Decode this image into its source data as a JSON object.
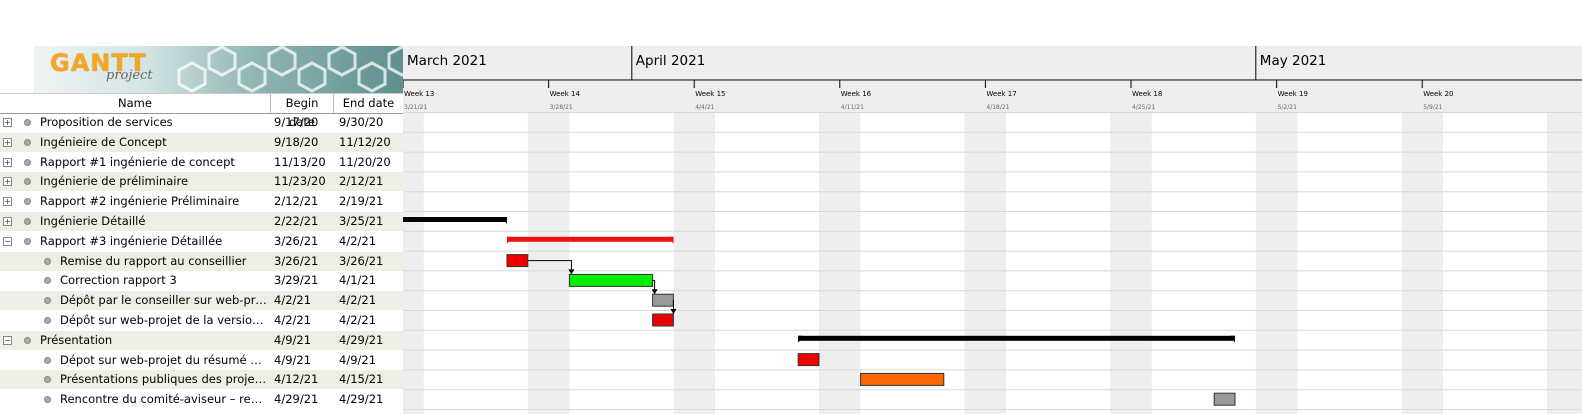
{
  "logo": {
    "title": "GANTT",
    "subtitle": "project"
  },
  "table": {
    "columns": {
      "name": "Name",
      "begin": "Begin date",
      "end": "End date"
    },
    "rows": [
      {
        "name": "Proposition de services",
        "begin": "9/17/20",
        "end": "9/30/20",
        "level": 0,
        "expander": "+"
      },
      {
        "name": "Ingénieire de Concept",
        "begin": "9/18/20",
        "end": "11/12/20",
        "level": 0,
        "expander": "+"
      },
      {
        "name": "Rapport #1  ingénierie de concept",
        "begin": "11/13/20",
        "end": "11/20/20",
        "level": 0,
        "expander": "+"
      },
      {
        "name": "Ingénierie de préliminaire",
        "begin": "11/23/20",
        "end": "2/12/21",
        "level": 0,
        "expander": "+"
      },
      {
        "name": "Rapport #2  ingénierie Préliminaire",
        "begin": "2/12/21",
        "end": "2/19/21",
        "level": 0,
        "expander": "+"
      },
      {
        "name": "Ingénierie Détaillé",
        "begin": "2/22/21",
        "end": "3/25/21",
        "level": 0,
        "expander": "+"
      },
      {
        "name": "Rapport #3  ingénierie Détaillée",
        "begin": "3/26/21",
        "end": "4/2/21",
        "level": 0,
        "expander": "−"
      },
      {
        "name": "Remise du rapport au conseillier",
        "begin": "3/26/21",
        "end": "3/26/21",
        "level": 1
      },
      {
        "name": "Correction rapport 3",
        "begin": "3/29/21",
        "end": "4/1/21",
        "level": 1
      },
      {
        "name": "Dépôt par le conseiller sur web-projet ...",
        "begin": "4/2/21",
        "end": "4/2/21",
        "level": 1
      },
      {
        "name": "Dépôt sur web-projet de la version cor...",
        "begin": "4/2/21",
        "end": "4/2/21",
        "level": 1
      },
      {
        "name": "Présentation",
        "begin": "4/9/21",
        "end": "4/29/21",
        "level": 0,
        "expander": "−"
      },
      {
        "name": "Dépot sur web-projet du résumé de pr...",
        "begin": "4/9/21",
        "end": "4/9/21",
        "level": 1
      },
      {
        "name": "Présentations publiques des projets de...",
        "begin": "4/12/21",
        "end": "4/15/21",
        "level": 1
      },
      {
        "name": "Rencontre du comité-aviseur – revue d...",
        "begin": "4/29/21",
        "end": "4/29/21",
        "level": 1
      }
    ]
  },
  "timeline": {
    "months": [
      "March 2021",
      "April 2021",
      "May 2021"
    ],
    "weeks": [
      {
        "label": "Week 13",
        "date": "3/21/21"
      },
      {
        "label": "Week 14",
        "date": "3/28/21"
      },
      {
        "label": "Week 15",
        "date": "4/4/21"
      },
      {
        "label": "Week 16",
        "date": "4/11/21"
      },
      {
        "label": "Week 17",
        "date": "4/18/21"
      },
      {
        "label": "Week 18",
        "date": "4/25/21"
      },
      {
        "label": "Week 19",
        "date": "5/2/21"
      },
      {
        "label": "Week 20",
        "date": "5/9/21"
      }
    ]
  },
  "chart_data": {
    "type": "gantt",
    "bars": [
      {
        "row": 5,
        "start": "2021-02-22",
        "end": "2021-03-25",
        "kind": "summary",
        "color": "#000000"
      },
      {
        "row": 6,
        "start": "2021-03-26",
        "end": "2021-04-02",
        "kind": "summary",
        "color": "#ee1111"
      },
      {
        "row": 7,
        "start": "2021-03-26",
        "end": "2021-03-26",
        "kind": "task",
        "color": "#ee0000"
      },
      {
        "row": 8,
        "start": "2021-03-29",
        "end": "2021-04-01",
        "kind": "task",
        "color": "#00ee00"
      },
      {
        "row": 9,
        "start": "2021-04-02",
        "end": "2021-04-02",
        "kind": "task",
        "color": "#999999"
      },
      {
        "row": 10,
        "start": "2021-04-02",
        "end": "2021-04-02",
        "kind": "task",
        "color": "#ee0000"
      },
      {
        "row": 11,
        "start": "2021-04-09",
        "end": "2021-04-29",
        "kind": "summary",
        "color": "#000000"
      },
      {
        "row": 12,
        "start": "2021-04-09",
        "end": "2021-04-09",
        "kind": "task",
        "color": "#ee0000"
      },
      {
        "row": 13,
        "start": "2021-04-12",
        "end": "2021-04-15",
        "kind": "task",
        "color": "#ff6600"
      },
      {
        "row": 14,
        "start": "2021-04-29",
        "end": "2021-04-29",
        "kind": "task",
        "color": "#999999"
      }
    ],
    "dependencies": [
      [
        7,
        8
      ],
      [
        8,
        9
      ],
      [
        9,
        10
      ]
    ]
  }
}
